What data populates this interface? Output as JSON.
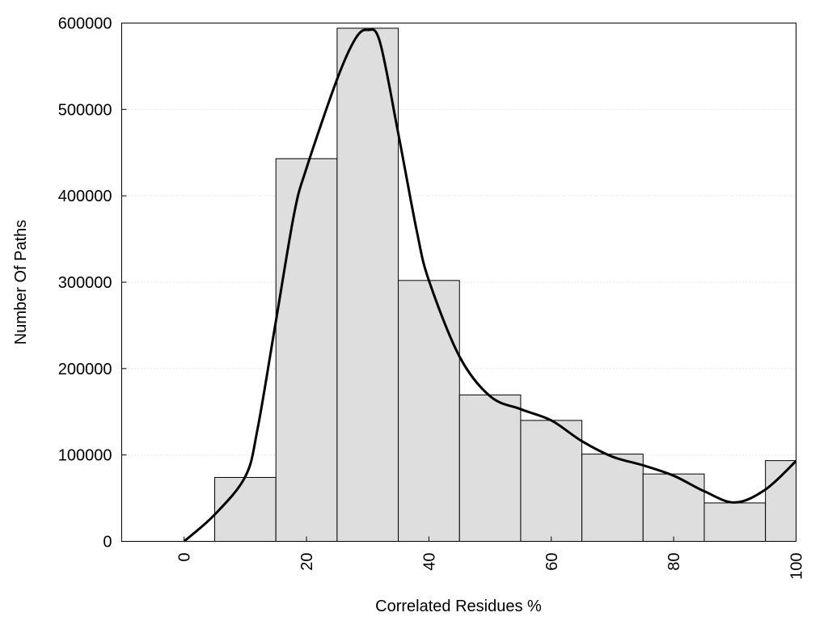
{
  "chart_data": {
    "type": "bar",
    "title": "",
    "xlabel": "Correlated Residues %",
    "ylabel": "Number Of Paths",
    "xlim": [
      -10.2,
      100
    ],
    "ylim": [
      0,
      600000
    ],
    "xticks": [
      "0",
      "20",
      "40",
      "60",
      "80",
      "100"
    ],
    "xtick_values": [
      0,
      20,
      40,
      60,
      80,
      100
    ],
    "yticks": [
      "0",
      "100000",
      "200000",
      "300000",
      "400000",
      "500000",
      "600000"
    ],
    "ytick_values": [
      0,
      100000,
      200000,
      300000,
      400000,
      500000,
      600000
    ],
    "grid": "horizontal dotted",
    "bars": [
      {
        "from": 5,
        "to": 15,
        "value": 74000
      },
      {
        "from": 15,
        "to": 25,
        "value": 443000
      },
      {
        "from": 25,
        "to": 35,
        "value": 594000
      },
      {
        "from": 35,
        "to": 45,
        "value": 302000
      },
      {
        "from": 45,
        "to": 55,
        "value": 169500
      },
      {
        "from": 55,
        "to": 65,
        "value": 140000
      },
      {
        "from": 65,
        "to": 75,
        "value": 101000
      },
      {
        "from": 75,
        "to": 85,
        "value": 78000
      },
      {
        "from": 85,
        "to": 95,
        "value": 44500
      },
      {
        "from": 95,
        "to": 105,
        "value": 93500
      }
    ],
    "density_curve": {
      "x": [
        0,
        5,
        10,
        12,
        15,
        18,
        20,
        25,
        28,
        30,
        32,
        35,
        38,
        40,
        45,
        50,
        55,
        60,
        65,
        70,
        75,
        80,
        85,
        90,
        95,
        100
      ],
      "y": [
        0,
        31000,
        75000,
        130000,
        255000,
        380000,
        432000,
        535000,
        582000,
        592000,
        578000,
        472000,
        360000,
        302000,
        214000,
        168000,
        153000,
        140000,
        116000,
        98000,
        88000,
        76000,
        58000,
        45000,
        60000,
        93000
      ]
    },
    "colors": {
      "bar_fill": "#dedede",
      "bar_stroke": "#000000",
      "curve": "#000000",
      "grid": "#cccccc"
    }
  }
}
